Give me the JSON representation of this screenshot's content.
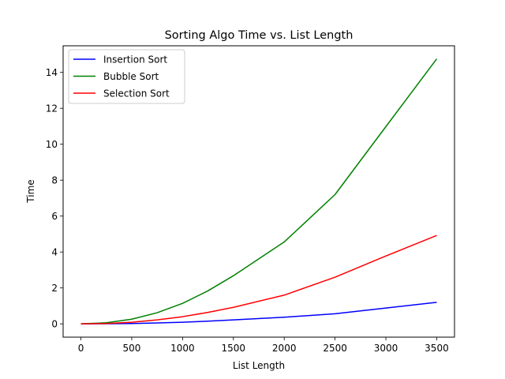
{
  "chart_data": {
    "type": "line",
    "title": "Sorting Algo Time vs. List Length",
    "xlabel": "List Length",
    "ylabel": "Time",
    "xlim": [
      -175,
      3675
    ],
    "ylim": [
      -0.74,
      15.48
    ],
    "xticks": [
      0,
      500,
      1000,
      1500,
      2000,
      2500,
      3000,
      3500
    ],
    "yticks": [
      0,
      2,
      4,
      6,
      8,
      10,
      12,
      14
    ],
    "grid": false,
    "legend_position": "top-left",
    "x": [
      0,
      250,
      500,
      750,
      1000,
      1250,
      1500,
      2000,
      2500,
      3000,
      3500
    ],
    "series": [
      {
        "name": "Insertion Sort",
        "color": "#0000ff",
        "values": [
          0,
          0.01,
          0.02,
          0.05,
          0.09,
          0.15,
          0.22,
          0.37,
          0.56,
          0.88,
          1.2
        ]
      },
      {
        "name": "Bubble Sort",
        "color": "#008000",
        "values": [
          0,
          0.06,
          0.26,
          0.62,
          1.14,
          1.84,
          2.68,
          4.56,
          7.2,
          10.98,
          14.75
        ]
      },
      {
        "name": "Selection Sort",
        "color": "#ff0000",
        "values": [
          0,
          0.02,
          0.09,
          0.22,
          0.4,
          0.64,
          0.92,
          1.6,
          2.6,
          3.78,
          4.92
        ]
      }
    ]
  }
}
